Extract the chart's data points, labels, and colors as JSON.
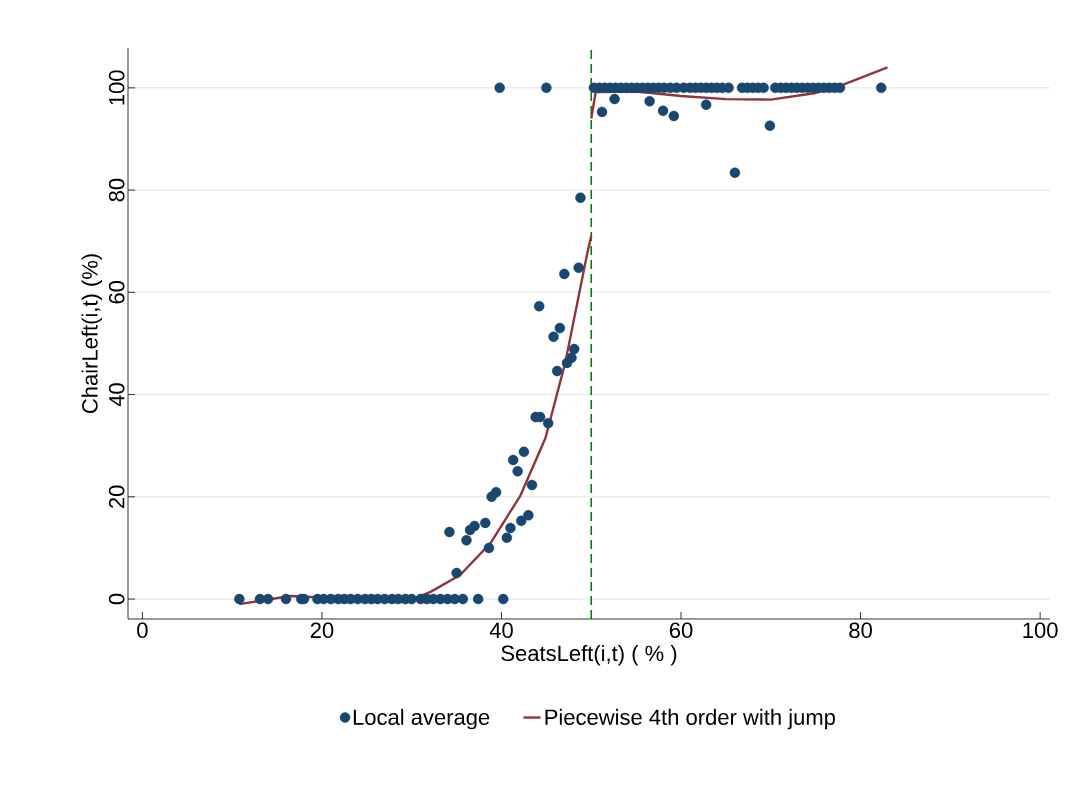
{
  "chart_data": {
    "type": "scatter",
    "xlabel": "SeatsLeft(i,t) ( % )",
    "ylabel": "ChairLeft(i,t) (%)",
    "xlim": [
      -1.6,
      101.1
    ],
    "ylim": [
      -3.9,
      107.8
    ],
    "xticks": [
      0,
      20,
      40,
      60,
      80,
      100
    ],
    "yticks": [
      0,
      20,
      40,
      60,
      80,
      100
    ],
    "grid": "y",
    "legend": "bottom",
    "ref_lines": [
      {
        "axis": "x",
        "value": 50,
        "color": "#008000",
        "line_style": "dashed"
      }
    ],
    "series": [
      {
        "name": "Local average",
        "marker": "circle",
        "color": "#1a476f",
        "x": [
          10.8,
          13.1,
          14.0,
          16.0,
          17.7,
          18.0,
          19.5,
          20.2,
          21.0,
          21.8,
          22.5,
          23.2,
          24.0,
          24.8,
          25.5,
          26.2,
          27.0,
          27.8,
          28.5,
          29.3,
          30.0,
          31.0,
          31.7,
          32.4,
          33.2,
          34.0,
          34.8,
          35.7,
          37.4,
          40.2,
          34.2,
          35.0,
          36.1,
          36.5,
          37.0,
          38.2,
          38.6,
          38.9,
          39.4,
          40.6,
          41.0,
          41.3,
          41.8,
          42.2,
          42.5,
          43.0,
          43.4,
          43.8,
          44.3,
          44.2,
          45.2,
          45.8,
          46.2,
          46.5,
          47.0,
          47.3,
          47.8,
          48.1,
          48.6,
          48.8,
          39.8,
          45.0,
          51.2,
          52.6,
          56.5,
          58.0,
          59.2,
          62.8,
          66.0,
          69.9,
          50.3,
          50.9,
          51.5,
          52.1,
          52.7,
          53.3,
          53.9,
          54.5,
          55.1,
          55.7,
          56.3,
          56.9,
          57.5,
          58.1,
          58.8,
          59.5,
          60.3,
          61.0,
          61.6,
          62.2,
          62.8,
          63.4,
          64.0,
          64.6,
          65.3,
          66.8,
          67.4,
          68.0,
          68.6,
          69.2,
          70.5,
          71.1,
          71.7,
          72.3,
          72.9,
          73.5,
          74.1,
          74.7,
          75.3,
          75.9,
          76.5,
          77.1,
          77.7,
          82.3
        ],
        "values": [
          0,
          0,
          0,
          0,
          0,
          0,
          0,
          0,
          0,
          0,
          0,
          0,
          0,
          0,
          0,
          0,
          0,
          0,
          0,
          0,
          0,
          0,
          0,
          0,
          0,
          0,
          0,
          0,
          0,
          0,
          13.1,
          5.1,
          11.5,
          13.5,
          14.3,
          14.9,
          10.0,
          20.0,
          20.9,
          12.0,
          13.9,
          27.2,
          25.0,
          15.3,
          28.8,
          16.4,
          22.3,
          35.6,
          35.6,
          57.3,
          34.4,
          51.3,
          44.6,
          53.0,
          63.6,
          46.2,
          47.2,
          48.9,
          64.8,
          78.5,
          100,
          100,
          95.3,
          97.8,
          97.4,
          95.5,
          94.5,
          96.7,
          83.4,
          92.6,
          100,
          100,
          100,
          100,
          100,
          100,
          100,
          100,
          100,
          100,
          100,
          100,
          100,
          100,
          100,
          100,
          100,
          100,
          100,
          100,
          100,
          100,
          100,
          100,
          100,
          100,
          100,
          100,
          100,
          100,
          100,
          100,
          100,
          100,
          100,
          100,
          100,
          100,
          100,
          100,
          100,
          100,
          100,
          100
        ]
      },
      {
        "name": "Piecewise 4th order with jump",
        "type": "line",
        "marker": "none",
        "line_style": "solid",
        "color": "#90353b",
        "x": [
          10.8,
          16.5,
          23.2,
          29.3,
          32.1,
          35.4,
          38.8,
          42.1,
          44.9,
          47.1,
          49.6,
          50
        ],
        "values": [
          -1.0,
          0.6,
          0,
          -0.6,
          1.4,
          4.7,
          11,
          20.2,
          31.5,
          46.2,
          68,
          71
        ]
      },
      {
        "type": "line",
        "marker": "none",
        "line_style": "solid",
        "color": "#90353b",
        "x": [
          50,
          50.5,
          55,
          60,
          65,
          70,
          75,
          78,
          83
        ],
        "values": [
          94,
          99.2,
          99.3,
          98.4,
          97.8,
          97.7,
          99.0,
          100.6,
          104
        ]
      }
    ]
  }
}
